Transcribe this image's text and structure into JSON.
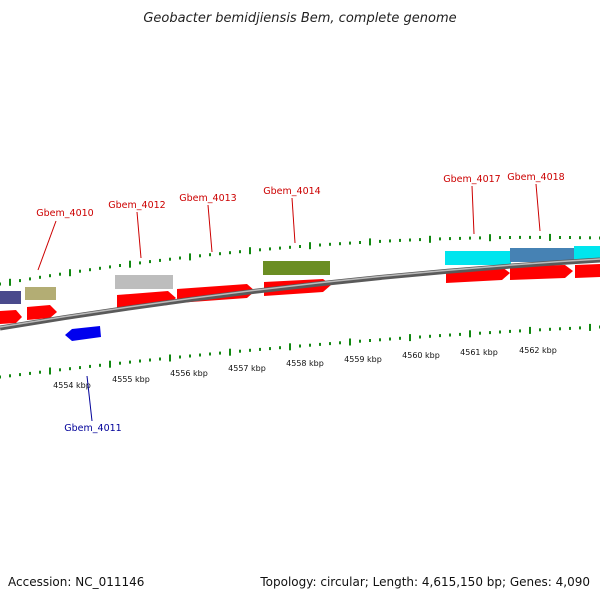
{
  "title": "Geobacter bemidjiensis Bem, complete genome",
  "footer": {
    "accession": "Accession: NC_011146",
    "summary": "Topology: circular; Length: 4,615,150 bp; Genes: 4,090"
  },
  "scale": {
    "ticks": [
      "4554 kbp",
      "4555 kbp",
      "4556 kbp",
      "4557 kbp",
      "4558 kbp",
      "4559 kbp",
      "4560 kbp",
      "4561 kbp",
      "4562 kbp"
    ]
  },
  "gene_labels": [
    {
      "id": "gene-label-gbem-4010",
      "text": "Gbem_4010",
      "strand": "forward"
    },
    {
      "id": "gene-label-gbem-4011",
      "text": "Gbem_4011",
      "strand": "reverse"
    },
    {
      "id": "gene-label-gbem-4012",
      "text": "Gbem_4012",
      "strand": "forward"
    },
    {
      "id": "gene-label-gbem-4013",
      "text": "Gbem_4013",
      "strand": "forward"
    },
    {
      "id": "gene-label-gbem-4014",
      "text": "Gbem_4014",
      "strand": "forward"
    },
    {
      "id": "gene-label-gbem-4017",
      "text": "Gbem_4017",
      "strand": "forward"
    },
    {
      "id": "gene-label-gbem-4018",
      "text": "Gbem_4018",
      "strand": "forward"
    }
  ],
  "colors": {
    "forward_label": "#cc0000",
    "reverse_label": "#000099",
    "cds_forward": "#ff0000",
    "cds_reverse": "#0000ee",
    "backbone": "#888888",
    "tick": "#118811",
    "feat_purple": "#4a4a8c",
    "feat_khaki": "#b3ad74",
    "feat_silver": "#bdbdbd",
    "feat_olive": "#6b8e23",
    "feat_cyan": "#00e5ee",
    "feat_steelblue": "#4682b4"
  }
}
